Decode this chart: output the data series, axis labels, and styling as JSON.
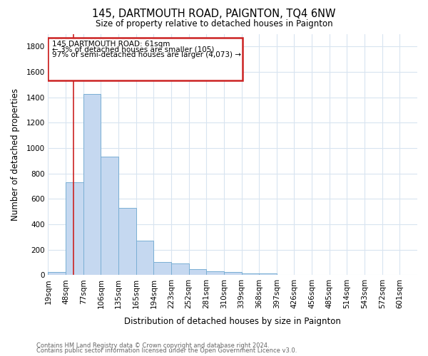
{
  "title": "145, DARTMOUTH ROAD, PAIGNTON, TQ4 6NW",
  "subtitle": "Size of property relative to detached houses in Paignton",
  "xlabel": "Distribution of detached houses by size in Paignton",
  "ylabel": "Number of detached properties",
  "bar_labels": [
    "19sqm",
    "48sqm",
    "77sqm",
    "106sqm",
    "135sqm",
    "165sqm",
    "194sqm",
    "223sqm",
    "252sqm",
    "281sqm",
    "310sqm",
    "339sqm",
    "368sqm",
    "397sqm",
    "426sqm",
    "456sqm",
    "485sqm",
    "514sqm",
    "543sqm",
    "572sqm",
    "601sqm"
  ],
  "bar_values": [
    22,
    730,
    1425,
    935,
    530,
    270,
    105,
    90,
    47,
    32,
    27,
    15,
    12,
    5,
    3,
    2,
    1,
    0,
    0,
    0,
    0
  ],
  "bar_color": "#c5d8f0",
  "bar_edge_color": "#7aafd4",
  "ylim": [
    0,
    1900
  ],
  "yticks": [
    0,
    200,
    400,
    600,
    800,
    1000,
    1200,
    1400,
    1600,
    1800
  ],
  "vline_x": 61,
  "vline_color": "#cc2222",
  "annotation_lines": [
    "145 DARTMOUTH ROAD: 61sqm",
    "← 3% of detached houses are smaller (105)",
    "97% of semi-detached houses are larger (4,073) →"
  ],
  "annotation_box_color": "#cc2222",
  "footer_line1": "Contains HM Land Registry data © Crown copyright and database right 2024.",
  "footer_line2": "Contains public sector information licensed under the Open Government Licence v3.0.",
  "background_color": "#ffffff",
  "grid_color": "#d8e4f0"
}
